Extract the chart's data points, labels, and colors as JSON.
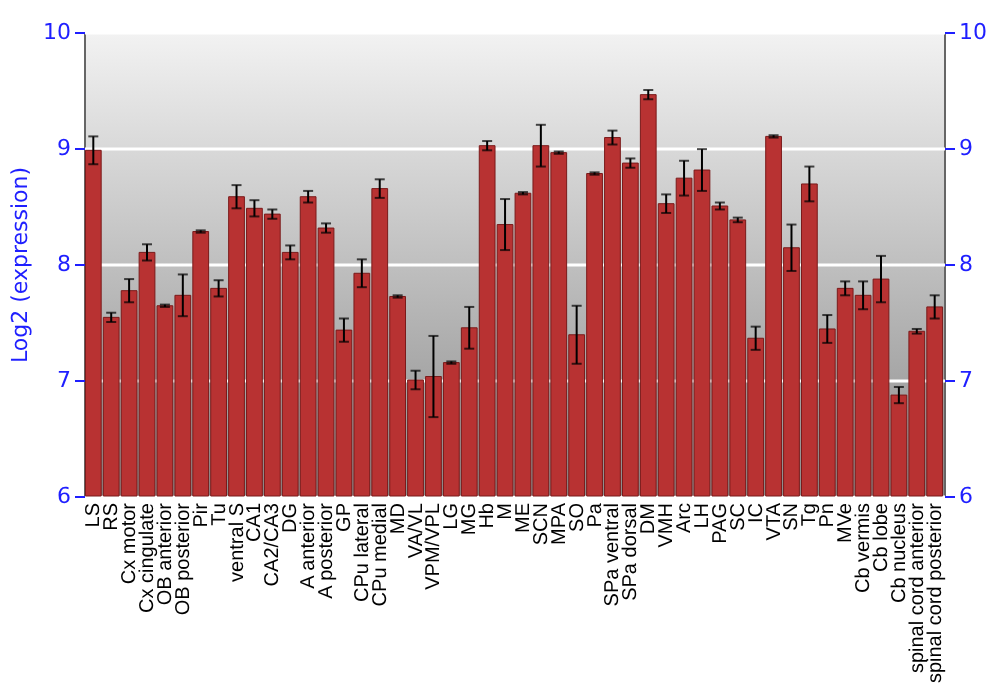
{
  "chart_data": {
    "type": "bar",
    "ylabel": "Log2 (expression)",
    "categories": [
      "LS",
      "RS",
      "Cx motor",
      "Cx cingulate",
      "OB anterior",
      "OB posterior",
      "Pir",
      "Tu",
      "ventral S",
      "CA1",
      "CA2/CA3",
      "DG",
      "A anterior",
      "A posterior",
      "GP",
      "CPu lateral",
      "CPu medial",
      "MD",
      "VA/VL",
      "VPM/VPL",
      "LG",
      "MG",
      "Hb",
      "M",
      "ME",
      "SCN",
      "MPA",
      "SO",
      "Pa",
      "SPa ventral",
      "SPa dorsal",
      "DM",
      "VMH",
      "Arc",
      "LH",
      "PAG",
      "SC",
      "IC",
      "VTA",
      "SN",
      "Tg",
      "Pn",
      "MVe",
      "Cb vermis",
      "Cb lobe",
      "Cb nucleus",
      "spinal cord anterior",
      "spinal cord posterior"
    ],
    "values": [
      8.98,
      7.54,
      7.77,
      8.1,
      7.64,
      7.73,
      8.28,
      7.79,
      8.58,
      8.48,
      8.43,
      8.1,
      8.58,
      8.31,
      7.43,
      7.92,
      8.65,
      7.72,
      7.0,
      7.03,
      7.15,
      7.45,
      9.02,
      8.34,
      8.61,
      9.02,
      8.96,
      7.39,
      8.78,
      9.09,
      8.87,
      9.46,
      8.52,
      8.74,
      8.81,
      8.5,
      8.38,
      7.36,
      9.1,
      8.14,
      8.69,
      7.44,
      7.79,
      7.73,
      7.87,
      6.87,
      7.42,
      7.63
    ],
    "errors": [
      0.12,
      0.04,
      0.1,
      0.07,
      0.01,
      0.18,
      0.01,
      0.07,
      0.1,
      0.07,
      0.04,
      0.06,
      0.05,
      0.04,
      0.1,
      0.12,
      0.08,
      0.01,
      0.08,
      0.35,
      0.01,
      0.18,
      0.04,
      0.22,
      0.01,
      0.18,
      0.01,
      0.25,
      0.01,
      0.06,
      0.04,
      0.04,
      0.08,
      0.15,
      0.18,
      0.03,
      0.02,
      0.1,
      0.01,
      0.2,
      0.15,
      0.12,
      0.06,
      0.12,
      0.2,
      0.07,
      0.02,
      0.1
    ],
    "color": "#b83232",
    "ylim": [
      6,
      10
    ],
    "yticks": [
      6,
      7,
      8,
      9,
      10
    ],
    "y2lim": [
      6,
      10
    ],
    "y2ticks": [
      6,
      7,
      8,
      9,
      10
    ],
    "grid": true
  }
}
